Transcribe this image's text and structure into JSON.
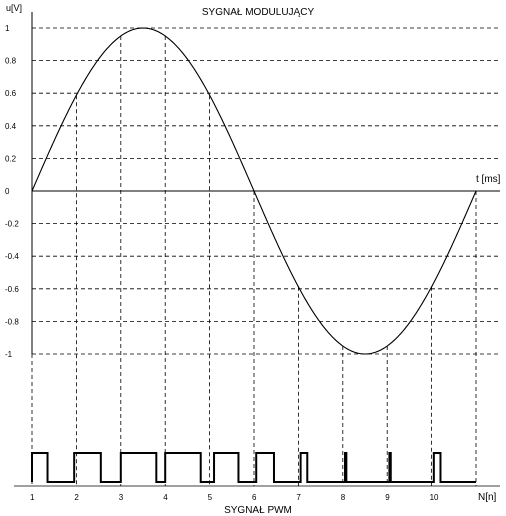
{
  "chart_data": [
    {
      "type": "line",
      "title": "SYGNAŁ MODULUJĄCY",
      "ylabel": "u[V]",
      "xlabel": "t [ms]",
      "ylim": [
        -1,
        1
      ],
      "xlim": [
        0,
        1
      ],
      "yticks": [
        1,
        0.8,
        0.6,
        0.4,
        0.2,
        0,
        -0.2,
        -0.4,
        -0.6,
        -0.8,
        -1
      ],
      "ytick_labels": [
        "1",
        "0.8",
        "0.6",
        "0.4",
        "0.2",
        "0",
        "-0.2",
        "-0.4",
        "-0.6",
        "-0.8",
        "-1"
      ],
      "grid": true,
      "series": [
        {
          "function": "sin",
          "cycles": 1,
          "amplitude": 1,
          "color": "#000000"
        }
      ],
      "sample_x": [
        0,
        0.1,
        0.2,
        0.3,
        0.4,
        0.5,
        0.6,
        0.7,
        0.8,
        0.9,
        1
      ],
      "sample_markers_x": [
        0.1,
        0.2,
        0.3,
        0.4,
        0.5,
        0.6,
        0.7,
        0.8,
        0.9
      ]
    },
    {
      "type": "line",
      "title": "SYGNAŁ  PWM",
      "xlabel": "N[n]",
      "x_ticks": [
        "1",
        "2",
        "3",
        "4",
        "5",
        "6",
        "7",
        "8",
        "9",
        "10"
      ],
      "pulses": [
        {
          "start": 0.0,
          "end": 0.035
        },
        {
          "start": 0.095,
          "end": 0.155
        },
        {
          "start": 0.2,
          "end": 0.28
        },
        {
          "start": 0.3,
          "end": 0.38
        },
        {
          "start": 0.41,
          "end": 0.465
        },
        {
          "start": 0.505,
          "end": 0.545
        },
        {
          "start": 0.605,
          "end": 0.62
        },
        {
          "start": 0.705,
          "end": 0.708
        },
        {
          "start": 0.805,
          "end": 0.808
        },
        {
          "start": 0.905,
          "end": 0.92
        }
      ],
      "color": "#000000"
    }
  ]
}
